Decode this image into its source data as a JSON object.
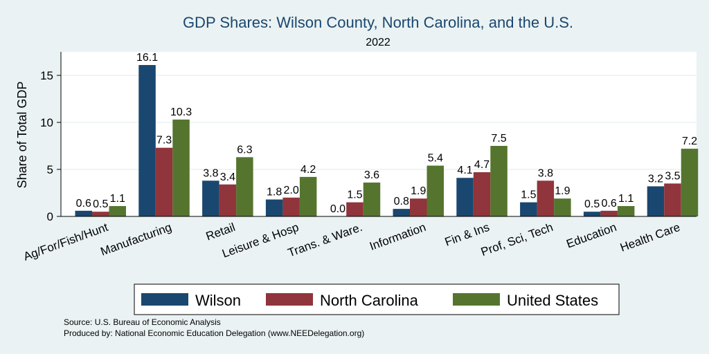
{
  "chart_data": {
    "type": "bar",
    "title": "GDP Shares: Wilson County, North Carolina, and the U.S.",
    "subtitle": "2022",
    "xlabel": "",
    "ylabel": "Share of Total GDP",
    "ylim": [
      0,
      17.5
    ],
    "yticks": [
      0,
      5,
      10,
      15
    ],
    "grid": true,
    "legend_position": "bottom",
    "categories": [
      "Ag/For/Fish/Hunt",
      "Manufacturing",
      "Retail",
      "Leisure & Hosp",
      "Trans. & Ware.",
      "Information",
      "Fin & Ins",
      "Prof, Sci, Tech",
      "Education",
      "Health Care"
    ],
    "series": [
      {
        "name": "Wilson",
        "color": "#1a476f",
        "values": [
          0.6,
          16.1,
          3.8,
          1.8,
          0.0,
          0.8,
          4.1,
          1.5,
          0.5,
          3.2
        ]
      },
      {
        "name": "North Carolina",
        "color": "#90353b",
        "values": [
          0.5,
          7.3,
          3.4,
          2.0,
          1.5,
          1.9,
          4.7,
          3.8,
          0.6,
          3.5
        ]
      },
      {
        "name": "United States",
        "color": "#55752f",
        "values": [
          1.1,
          10.3,
          6.3,
          4.2,
          3.6,
          5.4,
          7.5,
          1.9,
          1.1,
          7.2
        ]
      }
    ],
    "value_labels": [
      [
        "0.6",
        "16.1",
        "3.8",
        "1.8",
        "0.0",
        "0.8",
        "4.1",
        "1.5",
        "0.5",
        "3.2"
      ],
      [
        "0.5",
        "7.3",
        "3.4",
        "2.0",
        "1.5",
        "1.9",
        "4.7",
        "3.8",
        "0.6",
        "3.5"
      ],
      [
        "1.1",
        "10.3",
        "6.3",
        "4.2",
        "3.6",
        "5.4",
        "7.5",
        "1.9",
        "1.1",
        "7.2"
      ]
    ]
  },
  "notes": {
    "source": "Source: U.S. Bureau of Economic Analysis",
    "produced": "Produced by: National Economic Education Delegation (www.NEEDelegation.org)"
  }
}
